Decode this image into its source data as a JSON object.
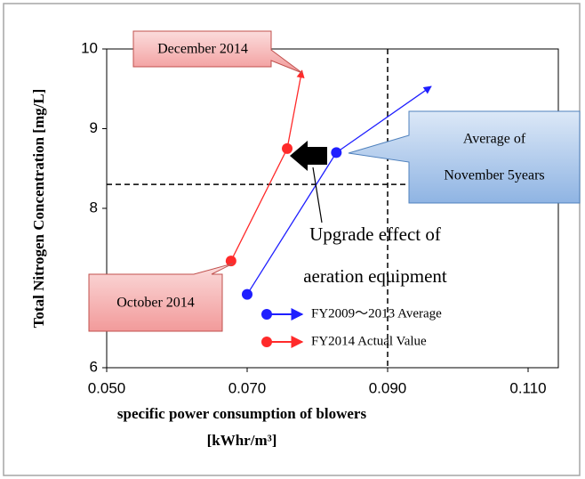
{
  "chart_data": {
    "type": "line",
    "ylabel": "Total Nitrogen Concentration [mg/L]",
    "xlabel": [
      "specific power consumption of blowers",
      "[kWhr/m³]"
    ],
    "xlim": [
      0.05,
      0.11
    ],
    "xticks": [
      {
        "value": 0.05,
        "label": "0.050"
      },
      {
        "value": 0.07,
        "label": "0.070"
      },
      {
        "value": 0.09,
        "label": "0.090"
      },
      {
        "value": 0.11,
        "label": "0.110"
      }
    ],
    "ylim": [
      6,
      10
    ],
    "yticks": [
      6,
      7,
      8,
      9,
      10
    ],
    "ref_x": 0.09,
    "ref_y": 8.3,
    "series": [
      {
        "name": "FY2009～2013 Average",
        "color": "#1f1fff",
        "x": [
          0.07,
          0.0827,
          0.0962
        ],
        "values": [
          6.92,
          8.7,
          9.53
        ]
      },
      {
        "name": "FY2014 Actual Value",
        "color": "#ff2a2a",
        "x": [
          0.0677,
          0.0757,
          0.0778
        ],
        "values": [
          7.34,
          8.75,
          9.73
        ]
      }
    ],
    "annotations": [
      "December 2014",
      "Average of",
      "November 5years",
      "October 2014",
      "Upgrade effect of",
      "aeration equipment"
    ]
  }
}
